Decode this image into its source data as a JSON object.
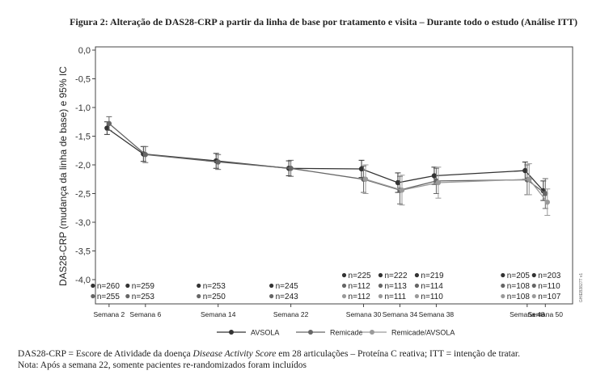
{
  "title": "Figura 2: Alteração de DAS28-CRP a partir  da linha de base por tratamento e visita – Durante todo o estudo (Análise ITT)",
  "footnotes": {
    "line1_prefix": "DAS28-CRP = Escore de Atividade da doença ",
    "line1_italic": "Disease Activity Score",
    "line1_suffix": " em 28 articulações – Proteína C reativa; ITT = intenção de tratar.",
    "line2": "Nota: Após a semana 22, somente pacientes re-randomizados foram incluídos"
  },
  "side_code": "GHIEB3827T v1",
  "chart_data": {
    "type": "line",
    "ylabel": "DAS28-CRP (mudança da linha de base) e 95% IC",
    "xlabel": "",
    "ylim": [
      -4.0,
      0.0
    ],
    "yticks": [
      0.0,
      -0.5,
      -1.0,
      -1.5,
      -2.0,
      -2.5,
      -3.0,
      -3.5,
      -4.0
    ],
    "ytick_labels": [
      "0,0",
      "-0,5",
      "-1,0",
      "-1,5",
      "-2,0",
      "-2,5",
      "-3,0",
      "-3,5",
      "-4,0"
    ],
    "grid": false,
    "legend_position": "bottom",
    "categories": [
      "Semana 2",
      "Semana 6",
      "Semana 14",
      "Semana 22",
      "Semana 30",
      "Semana 34",
      "Semana 38",
      "Semana 48",
      "Semana 50"
    ],
    "weeks": [
      2,
      6,
      14,
      22,
      30,
      34,
      38,
      48,
      50
    ],
    "series": [
      {
        "name": "AVSOLA",
        "color": "#333333",
        "values": [
          -1.36,
          -1.81,
          -1.93,
          -2.06,
          -2.07,
          -2.31,
          -2.19,
          -2.1,
          -2.45
        ],
        "ci_lower": [
          -1.47,
          -1.94,
          -2.06,
          -2.19,
          -2.22,
          -2.48,
          -2.34,
          -2.25,
          -2.62
        ],
        "ci_upper": [
          -1.25,
          -1.68,
          -1.8,
          -1.93,
          -1.92,
          -2.14,
          -2.04,
          -1.95,
          -2.28
        ],
        "n": [
          "n=260",
          "n=259",
          "n=253",
          "n=245",
          "n=225",
          "n=222",
          "n=219",
          "n=205",
          "n=203"
        ]
      },
      {
        "name": "Remicade",
        "color": "#666666",
        "values": [
          -1.28,
          -1.82,
          -1.95,
          -2.06,
          -2.25,
          -2.44,
          -2.28,
          -2.26,
          -2.5
        ],
        "ci_lower": [
          -1.4,
          -1.96,
          -2.08,
          -2.2,
          -2.48,
          -2.68,
          -2.5,
          -2.52,
          -2.76
        ],
        "ci_upper": [
          -1.16,
          -1.68,
          -1.82,
          -1.92,
          -2.02,
          -2.2,
          -2.06,
          -2.0,
          -2.24
        ],
        "n": [
          "n=255",
          "n=253",
          "n=250",
          "n=243",
          "n=112",
          "n=113",
          "n=114",
          "n=108",
          "n=110"
        ]
      },
      {
        "name": "Remicade/AVSOLA",
        "color": "#9a9a9a",
        "values": [
          null,
          null,
          null,
          null,
          -2.25,
          -2.44,
          -2.31,
          -2.25,
          -2.65
        ],
        "ci_lower": [
          null,
          null,
          null,
          null,
          -2.5,
          -2.7,
          -2.58,
          -2.52,
          -2.88
        ],
        "ci_upper": [
          null,
          null,
          null,
          null,
          -2.0,
          -2.18,
          -2.04,
          -1.98,
          -2.42
        ],
        "n": [
          null,
          null,
          null,
          null,
          "n=112",
          "n=111",
          "n=110",
          "n=108",
          "n=107"
        ]
      }
    ]
  }
}
